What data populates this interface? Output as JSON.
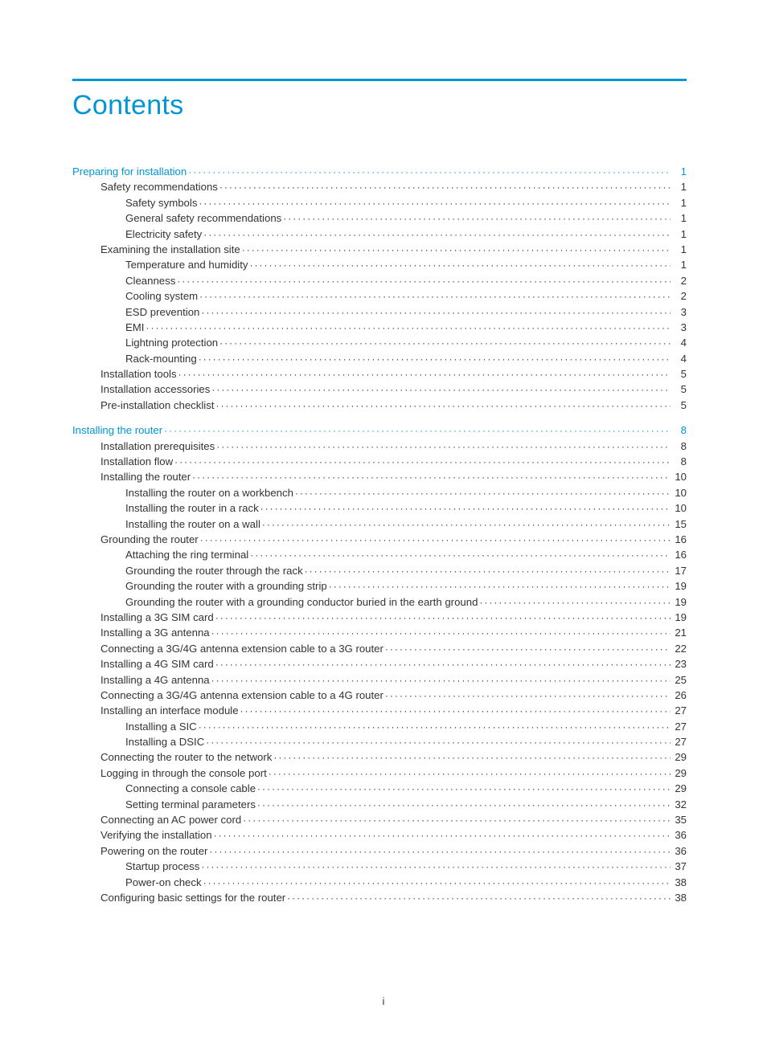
{
  "title": "Contents",
  "page_footer": "i",
  "colors": {
    "accent": "#0096d6",
    "text": "#333333",
    "bg": "#ffffff"
  },
  "toc": [
    {
      "label": "Preparing for installation",
      "page": "1",
      "level": 1,
      "section": true
    },
    {
      "label": "Safety recommendations",
      "page": "1",
      "level": 2
    },
    {
      "label": "Safety symbols",
      "page": "1",
      "level": 3
    },
    {
      "label": "General safety recommendations",
      "page": "1",
      "level": 3
    },
    {
      "label": "Electricity safety",
      "page": "1",
      "level": 3
    },
    {
      "label": "Examining the installation site",
      "page": "1",
      "level": 2
    },
    {
      "label": "Temperature and humidity",
      "page": "1",
      "level": 3
    },
    {
      "label": "Cleanness",
      "page": "2",
      "level": 3
    },
    {
      "label": "Cooling system",
      "page": "2",
      "level": 3
    },
    {
      "label": "ESD prevention",
      "page": "3",
      "level": 3
    },
    {
      "label": "EMI",
      "page": "3",
      "level": 3
    },
    {
      "label": "Lightning protection",
      "page": "4",
      "level": 3
    },
    {
      "label": "Rack-mounting",
      "page": "4",
      "level": 3
    },
    {
      "label": "Installation tools",
      "page": "5",
      "level": 2
    },
    {
      "label": "Installation accessories",
      "page": "5",
      "level": 2
    },
    {
      "label": "Pre-installation checklist",
      "page": "5",
      "level": 2
    },
    {
      "gap": true
    },
    {
      "label": "Installing the router",
      "page": "8",
      "level": 1,
      "section": true
    },
    {
      "label": "Installation prerequisites",
      "page": "8",
      "level": 2
    },
    {
      "label": "Installation flow",
      "page": "8",
      "level": 2
    },
    {
      "label": "Installing the router",
      "page": "10",
      "level": 2
    },
    {
      "label": "Installing the router on a workbench",
      "page": "10",
      "level": 3
    },
    {
      "label": "Installing the router in a rack",
      "page": "10",
      "level": 3
    },
    {
      "label": "Installing the router on a wall",
      "page": "15",
      "level": 3
    },
    {
      "label": "Grounding the router",
      "page": "16",
      "level": 2
    },
    {
      "label": "Attaching the ring terminal",
      "page": "16",
      "level": 3
    },
    {
      "label": "Grounding the router through the rack",
      "page": "17",
      "level": 3
    },
    {
      "label": "Grounding the router with a grounding strip",
      "page": "19",
      "level": 3
    },
    {
      "label": "Grounding the router with a grounding conductor buried in the earth ground",
      "page": "19",
      "level": 3
    },
    {
      "label": "Installing a 3G SIM card",
      "page": "19",
      "level": 2
    },
    {
      "label": "Installing a 3G antenna",
      "page": "21",
      "level": 2
    },
    {
      "label": "Connecting a 3G/4G antenna extension cable to a 3G router",
      "page": "22",
      "level": 2
    },
    {
      "label": "Installing a 4G SIM card",
      "page": "23",
      "level": 2
    },
    {
      "label": "Installing a 4G antenna",
      "page": "25",
      "level": 2
    },
    {
      "label": "Connecting a 3G/4G antenna extension cable to a 4G router",
      "page": "26",
      "level": 2
    },
    {
      "label": "Installing an interface module",
      "page": "27",
      "level": 2
    },
    {
      "label": "Installing a SIC",
      "page": "27",
      "level": 3
    },
    {
      "label": "Installing a DSIC",
      "page": "27",
      "level": 3
    },
    {
      "label": "Connecting the router to the network",
      "page": "29",
      "level": 2
    },
    {
      "label": "Logging in through the console port",
      "page": "29",
      "level": 2
    },
    {
      "label": "Connecting a console cable",
      "page": "29",
      "level": 3
    },
    {
      "label": "Setting terminal parameters",
      "page": "32",
      "level": 3
    },
    {
      "label": "Connecting an AC power cord",
      "page": "35",
      "level": 2
    },
    {
      "label": "Verifying the installation",
      "page": "36",
      "level": 2
    },
    {
      "label": "Powering on the router",
      "page": "36",
      "level": 2
    },
    {
      "label": "Startup process",
      "page": "37",
      "level": 3
    },
    {
      "label": "Power-on check",
      "page": "38",
      "level": 3
    },
    {
      "label": "Configuring basic settings for the router",
      "page": "38",
      "level": 2
    }
  ]
}
